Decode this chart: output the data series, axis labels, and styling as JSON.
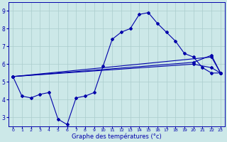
{
  "xlabel": "Graphe des températures (°c)",
  "background_color": "#cce8e8",
  "grid_color": "#aacccc",
  "line_color": "#0000aa",
  "ylim": [
    2.5,
    9.5
  ],
  "xlim": [
    -0.5,
    23.5
  ],
  "line1_x": [
    0,
    1,
    2,
    3,
    4,
    5,
    6,
    7,
    8,
    9,
    10,
    11,
    12,
    13,
    14,
    15,
    16,
    17,
    18,
    19,
    20,
    21,
    22,
    23
  ],
  "line1_y": [
    5.3,
    4.2,
    4.1,
    4.3,
    4.4,
    2.9,
    2.6,
    4.1,
    4.2,
    4.4,
    5.9,
    7.4,
    7.8,
    8.0,
    8.8,
    8.9,
    8.3,
    7.8,
    7.3,
    6.6,
    6.4,
    5.8,
    5.5,
    5.5
  ],
  "line2_x": [
    0,
    22,
    23
  ],
  "line2_y": [
    5.3,
    6.4,
    5.5
  ],
  "line3_x": [
    0,
    20,
    22,
    23
  ],
  "line3_y": [
    5.3,
    6.0,
    5.8,
    5.5
  ],
  "line4_x": [
    0,
    20,
    22,
    23
  ],
  "line4_y": [
    5.3,
    6.1,
    6.5,
    5.5
  ],
  "xticks": [
    0,
    1,
    2,
    3,
    4,
    5,
    6,
    7,
    8,
    9,
    10,
    11,
    12,
    13,
    14,
    15,
    16,
    17,
    18,
    19,
    20,
    21,
    22,
    23
  ],
  "yticks": [
    3,
    4,
    5,
    6,
    7,
    8,
    9
  ]
}
